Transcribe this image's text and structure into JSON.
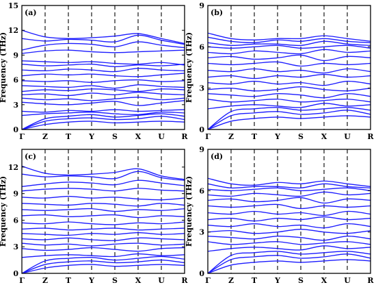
{
  "chart_data": [
    {
      "type": "line",
      "panel_label": "(a)",
      "ylabel": "Frequency (THz)",
      "ylim": [
        0,
        15
      ],
      "yticks": [
        0,
        3,
        6,
        9,
        12,
        15
      ],
      "x_labels": [
        "Γ",
        "Z",
        "T",
        "Y",
        "S",
        "X",
        "U",
        "R"
      ],
      "x_positions": [
        0,
        1,
        2,
        3,
        4,
        5,
        6,
        7
      ],
      "series": [
        {
          "values": [
            0.0,
            0.6,
            0.9,
            1.0,
            0.8,
            0.9,
            1.0,
            0.9
          ]
        },
        {
          "values": [
            0.0,
            1.0,
            1.3,
            1.4,
            1.2,
            1.3,
            1.6,
            1.2
          ]
        },
        {
          "values": [
            0.0,
            1.3,
            1.6,
            1.8,
            1.5,
            1.7,
            1.9,
            1.6
          ]
        },
        {
          "values": [
            1.7,
            1.9,
            2.0,
            2.1,
            1.9,
            1.8,
            2.1,
            2.0
          ]
        },
        {
          "values": [
            2.2,
            2.1,
            2.3,
            2.2,
            2.4,
            2.2,
            2.3,
            2.4
          ]
        },
        {
          "values": [
            3.3,
            3.1,
            3.0,
            3.2,
            3.4,
            2.9,
            3.2,
            3.5
          ]
        },
        {
          "values": [
            3.8,
            3.6,
            3.7,
            3.5,
            3.7,
            3.9,
            3.6,
            3.8
          ]
        },
        {
          "values": [
            4.2,
            4.3,
            4.1,
            4.4,
            4.2,
            4.5,
            4.3,
            4.2
          ]
        },
        {
          "values": [
            4.6,
            4.8,
            4.7,
            4.9,
            4.8,
            4.6,
            4.9,
            4.8
          ]
        },
        {
          "values": [
            5.3,
            5.2,
            5.1,
            5.3,
            5.0,
            5.4,
            5.2,
            5.1
          ]
        },
        {
          "values": [
            5.9,
            5.8,
            5.9,
            5.7,
            5.9,
            6.0,
            5.8,
            5.9
          ]
        },
        {
          "values": [
            6.5,
            6.7,
            6.6,
            6.7,
            6.5,
            6.4,
            6.6,
            6.8
          ]
        },
        {
          "values": [
            7.2,
            7.1,
            7.3,
            7.2,
            7.0,
            7.4,
            7.2,
            7.1
          ]
        },
        {
          "values": [
            7.9,
            7.7,
            7.8,
            7.9,
            7.6,
            7.8,
            7.7,
            7.9
          ]
        },
        {
          "values": [
            8.3,
            8.2,
            8.1,
            8.2,
            8.0,
            7.9,
            8.1,
            7.8
          ]
        },
        {
          "values": [
            9.2,
            9.5,
            9.6,
            9.4,
            9.3,
            9.4,
            9.5,
            9.6
          ]
        },
        {
          "values": [
            9.6,
            10.2,
            10.4,
            10.3,
            10.0,
            10.6,
            10.2,
            9.9
          ]
        },
        {
          "values": [
            11.0,
            10.7,
            10.9,
            10.8,
            10.6,
            11.4,
            10.8,
            10.3
          ]
        },
        {
          "values": [
            12.0,
            11.2,
            11.0,
            11.1,
            11.3,
            11.6,
            11.0,
            10.4
          ]
        }
      ]
    },
    {
      "type": "line",
      "panel_label": "(b)",
      "ylabel": "Frequency (THz)",
      "ylim": [
        0,
        9
      ],
      "yticks": [
        0,
        3,
        6,
        9
      ],
      "x_labels": [
        "Γ",
        "Z",
        "T",
        "Y",
        "S",
        "X",
        "U",
        "R"
      ],
      "x_positions": [
        0,
        1,
        2,
        3,
        4,
        5,
        6,
        7
      ],
      "series": [
        {
          "values": [
            0.0,
            0.6,
            0.8,
            0.9,
            0.8,
            0.9,
            1.0,
            0.9
          ]
        },
        {
          "values": [
            0.0,
            1.0,
            1.2,
            1.3,
            1.1,
            1.2,
            1.4,
            1.1
          ]
        },
        {
          "values": [
            0.0,
            1.3,
            1.5,
            1.6,
            1.4,
            1.5,
            1.6,
            1.4
          ]
        },
        {
          "values": [
            1.5,
            1.7,
            1.8,
            1.7,
            1.6,
            1.9,
            1.7,
            1.8
          ]
        },
        {
          "values": [
            2.2,
            2.0,
            2.1,
            2.2,
            2.0,
            2.1,
            2.2,
            2.0
          ]
        },
        {
          "values": [
            2.6,
            2.5,
            2.4,
            2.6,
            2.5,
            2.3,
            2.6,
            2.4
          ]
        },
        {
          "values": [
            2.9,
            3.0,
            2.8,
            2.9,
            3.1,
            2.9,
            2.8,
            3.0
          ]
        },
        {
          "values": [
            3.4,
            3.3,
            3.5,
            3.3,
            3.4,
            3.2,
            3.5,
            3.3
          ]
        },
        {
          "values": [
            3.8,
            3.9,
            3.7,
            3.9,
            3.8,
            4.0,
            3.8,
            3.9
          ]
        },
        {
          "values": [
            4.3,
            4.2,
            4.4,
            4.2,
            4.3,
            4.1,
            4.4,
            4.2
          ]
        },
        {
          "values": [
            4.8,
            4.7,
            4.8,
            4.9,
            4.6,
            4.8,
            4.7,
            4.8
          ]
        },
        {
          "values": [
            5.2,
            5.3,
            5.1,
            5.2,
            5.4,
            5.0,
            5.3,
            5.2
          ]
        },
        {
          "values": [
            5.6,
            5.5,
            5.7,
            5.6,
            5.5,
            5.8,
            5.6,
            5.7
          ]
        },
        {
          "values": [
            6.0,
            5.9,
            6.0,
            6.1,
            5.9,
            6.0,
            6.1,
            5.9
          ]
        },
        {
          "values": [
            6.3,
            6.1,
            6.2,
            6.2,
            6.1,
            6.4,
            6.2,
            6.1
          ]
        },
        {
          "values": [
            6.7,
            6.4,
            6.3,
            6.5,
            6.4,
            6.6,
            6.4,
            6.3
          ]
        },
        {
          "values": [
            7.0,
            6.6,
            6.5,
            6.6,
            6.6,
            6.8,
            6.6,
            6.4
          ]
        }
      ]
    },
    {
      "type": "line",
      "panel_label": "(c)",
      "ylabel": "Frequency (THz)",
      "ylim": [
        0,
        14
      ],
      "yticks": [
        0,
        3,
        6,
        9,
        12
      ],
      "x_labels": [
        "Γ",
        "Z",
        "T",
        "Y",
        "S",
        "X",
        "U",
        "R"
      ],
      "x_positions": [
        0,
        1,
        2,
        3,
        4,
        5,
        6,
        7
      ],
      "series": [
        {
          "values": [
            0.0,
            0.6,
            0.9,
            1.0,
            0.8,
            0.9,
            1.0,
            0.9
          ]
        },
        {
          "values": [
            0.0,
            1.0,
            1.3,
            1.4,
            1.2,
            1.3,
            1.5,
            1.2
          ]
        },
        {
          "values": [
            0.0,
            1.4,
            1.7,
            1.8,
            1.5,
            1.7,
            1.9,
            1.6
          ]
        },
        {
          "values": [
            1.8,
            2.0,
            2.1,
            2.0,
            1.9,
            2.2,
            2.0,
            2.1
          ]
        },
        {
          "values": [
            2.8,
            2.6,
            2.7,
            2.9,
            2.7,
            2.5,
            2.8,
            2.9
          ]
        },
        {
          "values": [
            3.4,
            3.2,
            3.3,
            3.1,
            3.3,
            3.4,
            3.2,
            3.3
          ]
        },
        {
          "values": [
            3.9,
            3.8,
            4.0,
            3.8,
            3.7,
            4.0,
            3.9,
            3.8
          ]
        },
        {
          "values": [
            4.5,
            4.4,
            4.3,
            4.5,
            4.4,
            4.6,
            4.4,
            4.5
          ]
        },
        {
          "values": [
            5.0,
            5.1,
            4.9,
            5.0,
            5.1,
            4.9,
            5.0,
            5.1
          ]
        },
        {
          "values": [
            5.7,
            5.6,
            5.8,
            5.6,
            5.5,
            5.7,
            5.6,
            5.8
          ]
        },
        {
          "values": [
            6.5,
            6.6,
            6.4,
            6.5,
            6.6,
            6.3,
            6.5,
            6.4
          ]
        },
        {
          "values": [
            7.2,
            7.1,
            7.2,
            7.3,
            7.0,
            7.2,
            7.1,
            7.3
          ]
        },
        {
          "values": [
            7.9,
            7.8,
            7.7,
            7.9,
            7.8,
            7.6,
            7.9,
            7.7
          ]
        },
        {
          "values": [
            8.6,
            8.5,
            8.7,
            8.5,
            8.6,
            8.4,
            8.3,
            8.5
          ]
        },
        {
          "values": [
            9.3,
            9.5,
            9.6,
            9.5,
            9.3,
            9.6,
            9.4,
            9.3
          ]
        },
        {
          "values": [
            9.8,
            10.1,
            10.3,
            10.2,
            10.0,
            10.5,
            10.2,
            9.9
          ]
        },
        {
          "values": [
            11.2,
            10.9,
            11.0,
            10.9,
            10.7,
            11.5,
            10.8,
            10.5
          ]
        },
        {
          "values": [
            12.1,
            11.3,
            11.1,
            11.2,
            11.4,
            11.8,
            11.0,
            10.6
          ]
        }
      ]
    },
    {
      "type": "line",
      "panel_label": "(d)",
      "ylabel": "Frequency (THz)",
      "ylim": [
        0,
        9
      ],
      "yticks": [
        0,
        3,
        6,
        9
      ],
      "x_labels": [
        "Γ",
        "Z",
        "T",
        "Y",
        "S",
        "X",
        "U",
        "R"
      ],
      "x_positions": [
        0,
        1,
        2,
        3,
        4,
        5,
        6,
        7
      ],
      "series": [
        {
          "values": [
            0.0,
            0.6,
            0.8,
            0.9,
            0.8,
            0.9,
            1.0,
            0.9
          ]
        },
        {
          "values": [
            0.0,
            1.0,
            1.2,
            1.3,
            1.1,
            1.2,
            1.4,
            1.1
          ]
        },
        {
          "values": [
            0.0,
            1.3,
            1.5,
            1.6,
            1.4,
            1.5,
            1.6,
            1.4
          ]
        },
        {
          "values": [
            1.6,
            1.8,
            1.9,
            1.8,
            1.7,
            2.0,
            1.8,
            1.9
          ]
        },
        {
          "values": [
            2.3,
            2.1,
            2.2,
            2.3,
            2.1,
            2.2,
            2.3,
            2.1
          ]
        },
        {
          "values": [
            2.7,
            2.6,
            2.5,
            2.7,
            2.6,
            2.4,
            2.7,
            2.5
          ]
        },
        {
          "values": [
            3.0,
            3.1,
            2.9,
            3.0,
            3.2,
            3.0,
            2.9,
            3.1
          ]
        },
        {
          "values": [
            3.5,
            3.4,
            3.6,
            3.4,
            3.5,
            3.3,
            3.6,
            3.4
          ]
        },
        {
          "values": [
            3.9,
            4.0,
            3.8,
            4.0,
            3.9,
            4.1,
            3.9,
            4.0
          ]
        },
        {
          "values": [
            4.4,
            4.3,
            4.5,
            4.3,
            4.4,
            4.2,
            4.5,
            4.3
          ]
        },
        {
          "values": [
            4.9,
            4.8,
            4.9,
            5.0,
            4.7,
            4.9,
            4.8,
            4.9
          ]
        },
        {
          "values": [
            5.3,
            5.4,
            5.2,
            5.3,
            5.5,
            5.1,
            5.4,
            5.3
          ]
        },
        {
          "values": [
            5.7,
            5.6,
            5.8,
            5.7,
            5.6,
            5.9,
            5.7,
            5.8
          ]
        },
        {
          "values": [
            6.1,
            6.0,
            6.1,
            6.2,
            6.0,
            6.1,
            6.2,
            6.0
          ]
        },
        {
          "values": [
            6.5,
            6.2,
            6.3,
            6.3,
            6.2,
            6.5,
            6.3,
            6.2
          ]
        },
        {
          "values": [
            6.9,
            6.5,
            6.4,
            6.6,
            6.5,
            6.7,
            6.5,
            6.3
          ]
        }
      ]
    }
  ],
  "colors": {
    "band": "#1a1aff",
    "frame": "#000000",
    "background": "#ffffff"
  }
}
